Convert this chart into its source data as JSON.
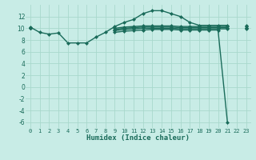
{
  "xlabel": "Humidex (Indice chaleur)",
  "xlim": [
    -0.5,
    23.5
  ],
  "ylim": [
    -7,
    14
  ],
  "yticks": [
    -6,
    -4,
    -2,
    0,
    2,
    4,
    6,
    8,
    10,
    12
  ],
  "xticks": [
    0,
    1,
    2,
    3,
    4,
    5,
    6,
    7,
    8,
    9,
    10,
    11,
    12,
    13,
    14,
    15,
    16,
    17,
    18,
    19,
    20,
    21,
    22,
    23
  ],
  "bg_color": "#c8ece6",
  "grid_color": "#a8d8cc",
  "line_color": "#1a6b5a",
  "line_width": 1.0,
  "marker": "D",
  "marker_size": 2.5,
  "series": [
    [
      10.2,
      9.3,
      9.0,
      9.2,
      7.5,
      7.5,
      7.5,
      8.5,
      9.3,
      10.3,
      11.0,
      11.5,
      12.5,
      13.0,
      13.0,
      12.5,
      12.0,
      11.0,
      10.5,
      10.5,
      10.5,
      10.5,
      null,
      10.5
    ],
    [
      10.1,
      null,
      null,
      null,
      null,
      null,
      null,
      null,
      null,
      10.0,
      10.2,
      10.3,
      10.4,
      10.4,
      10.4,
      10.4,
      10.3,
      10.3,
      10.3,
      10.3,
      10.3,
      10.3,
      null,
      10.3
    ],
    [
      10.0,
      null,
      null,
      null,
      null,
      null,
      null,
      null,
      null,
      9.8,
      10.0,
      10.1,
      10.2,
      10.2,
      10.2,
      10.2,
      10.1,
      10.1,
      10.1,
      10.1,
      10.1,
      10.1,
      null,
      10.1
    ],
    [
      10.0,
      null,
      null,
      null,
      null,
      null,
      null,
      null,
      null,
      9.6,
      9.8,
      9.9,
      10.0,
      10.0,
      10.0,
      10.0,
      9.9,
      9.9,
      9.9,
      9.9,
      9.9,
      9.9,
      null,
      9.9
    ],
    [
      10.0,
      null,
      null,
      null,
      null,
      null,
      null,
      null,
      null,
      9.3,
      9.5,
      9.6,
      9.7,
      9.8,
      9.8,
      9.8,
      9.7,
      9.7,
      9.7,
      9.7,
      9.7,
      -6.0,
      null,
      10.0
    ]
  ]
}
